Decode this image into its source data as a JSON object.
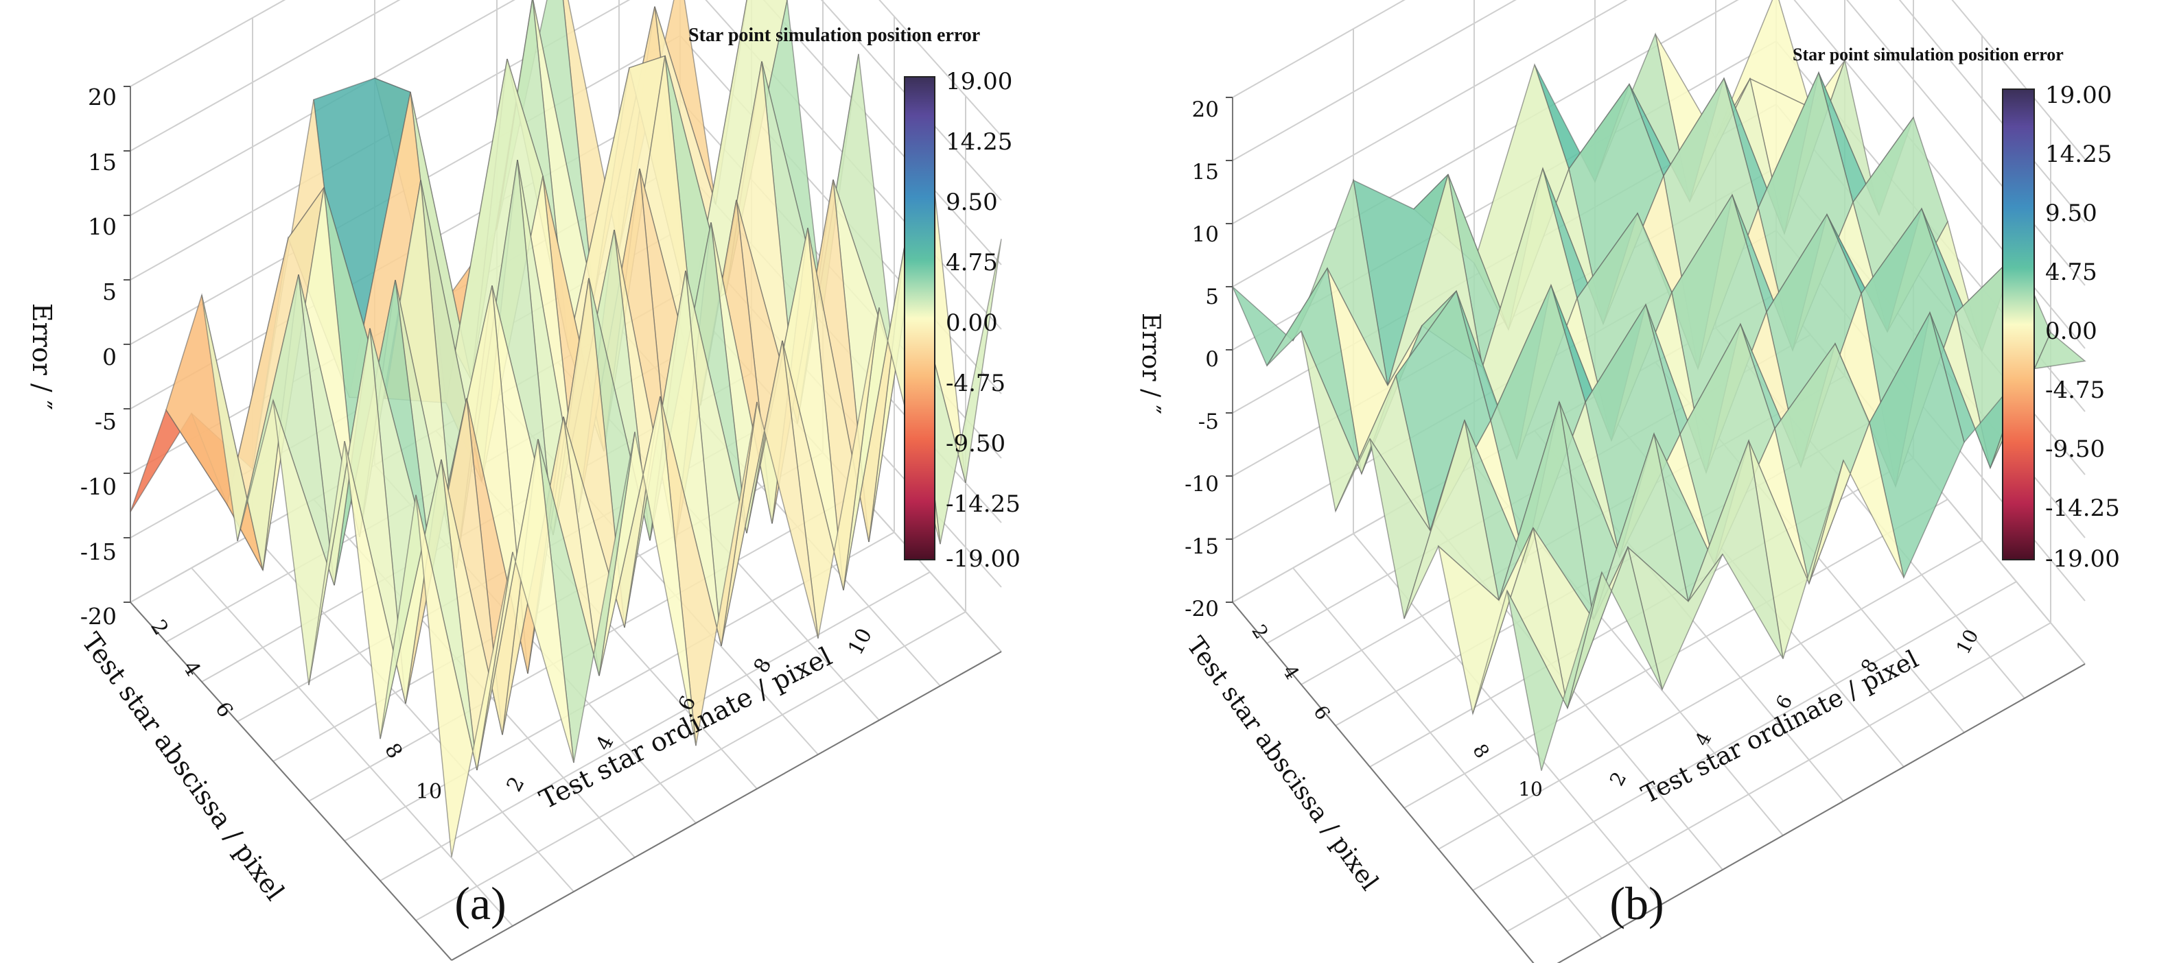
{
  "chart_data": [
    {
      "panel": "(a)",
      "type": "surface",
      "title": "Star point simulation position error",
      "xlabel": "Test star abscissa / pixel",
      "ylabel": "Test star ordinate / pixel",
      "zlabel": "Error / ″",
      "x_ticks": [
        "2",
        "4",
        "6",
        "8",
        "10"
      ],
      "y_ticks": [
        "2",
        "4",
        "6",
        "8",
        "10"
      ],
      "z_ticks": [
        "-20",
        "-15",
        "-10",
        "-5",
        "0",
        "5",
        "10",
        "15",
        "20"
      ],
      "zlim": [
        -20,
        20
      ],
      "colorbar": {
        "min": -19.0,
        "max": 19.0,
        "ticks": [
          "19.00",
          "14.25",
          "9.50",
          "4.75",
          "0.00",
          "-4.75",
          "-9.50",
          "-14.25",
          "-19.00"
        ]
      },
      "x": [
        1,
        2,
        3,
        4,
        5,
        6,
        7,
        8,
        9,
        10
      ],
      "y": [
        1,
        2,
        3,
        4,
        5,
        6,
        7,
        8,
        9,
        10
      ],
      "z": [
        [
          -13,
          -8,
          -15,
          11,
          10,
          -11,
          -7,
          12,
          -14,
          5
        ],
        [
          -2,
          -12,
          6,
          -9,
          12,
          -13,
          14,
          -12,
          8,
          -10
        ],
        [
          10,
          -14,
          13,
          -6,
          -9,
          15,
          -10,
          9,
          -13,
          11
        ],
        [
          -6,
          12,
          -11,
          14,
          -12,
          9,
          -15,
          13,
          -8,
          12
        ],
        [
          8,
          -9,
          12,
          -13,
          16,
          -14,
          10,
          -11,
          13,
          -9
        ],
        [
          -11,
          14,
          -7,
          12,
          -10,
          11,
          -16,
          8,
          -12,
          14
        ],
        [
          11,
          -12,
          9,
          -15,
          13,
          -10,
          12,
          -14,
          10,
          -7
        ],
        [
          -9,
          10,
          -14,
          8,
          -11,
          14,
          -9,
          12,
          -15,
          13
        ],
        [
          13,
          -11,
          12,
          -9,
          10,
          -12,
          9,
          -13,
          11,
          -10
        ],
        [
          -12,
          9,
          -10,
          13,
          -14,
          10,
          -11,
          12,
          -9,
          12
        ]
      ]
    },
    {
      "panel": "(b)",
      "type": "surface",
      "title": "Star point simulation position error",
      "xlabel": "Test star abscissa / pixel",
      "ylabel": "Test star ordinate / pixel",
      "zlabel": "Error / ″",
      "x_ticks": [
        "2",
        "4",
        "6",
        "8",
        "10"
      ],
      "y_ticks": [
        "2",
        "4",
        "6",
        "8",
        "10"
      ],
      "z_ticks": [
        "-20",
        "-15",
        "-10",
        "-5",
        "0",
        "5",
        "10",
        "15",
        "20"
      ],
      "zlim": [
        -20,
        20
      ],
      "colorbar": {
        "min": -19.0,
        "max": 19.0,
        "ticks": [
          "19.00",
          "14.25",
          "9.50",
          "4.75",
          "0.00",
          "-4.75",
          "-9.50",
          "-14.25",
          "-19.00"
        ]
      },
      "x": [
        1,
        2,
        3,
        4,
        5,
        6,
        7,
        8,
        9,
        10
      ],
      "y": [
        1,
        2,
        3,
        4,
        5,
        6,
        7,
        8,
        9,
        10
      ],
      "z": [
        [
          5,
          -2,
          8,
          3,
          -4,
          9,
          -3,
          6,
          -5,
          4
        ],
        [
          2,
          7,
          -5,
          9,
          -6,
          4,
          8,
          -4,
          3,
          -2
        ],
        [
          8,
          -6,
          3,
          -3,
          10,
          -5,
          4,
          9,
          -6,
          5
        ],
        [
          -3,
          5,
          9,
          -7,
          3,
          7,
          -8,
          2,
          10,
          -4
        ],
        [
          6,
          -4,
          2,
          10,
          -5,
          4,
          9,
          -6,
          3,
          7
        ],
        [
          -5,
          8,
          -6,
          4,
          9,
          -7,
          3,
          8,
          -4,
          2
        ],
        [
          4,
          -3,
          10,
          -5,
          2,
          8,
          -6,
          5,
          9,
          -5
        ],
        [
          -6,
          6,
          -4,
          8,
          -5,
          3,
          7,
          -7,
          4,
          6
        ],
        [
          7,
          -5,
          5,
          -2,
          8,
          -6,
          4,
          10,
          -5,
          3
        ],
        [
          -4,
          9,
          -3,
          5,
          -6,
          7,
          -5,
          3,
          6,
          4
        ]
      ]
    }
  ]
}
